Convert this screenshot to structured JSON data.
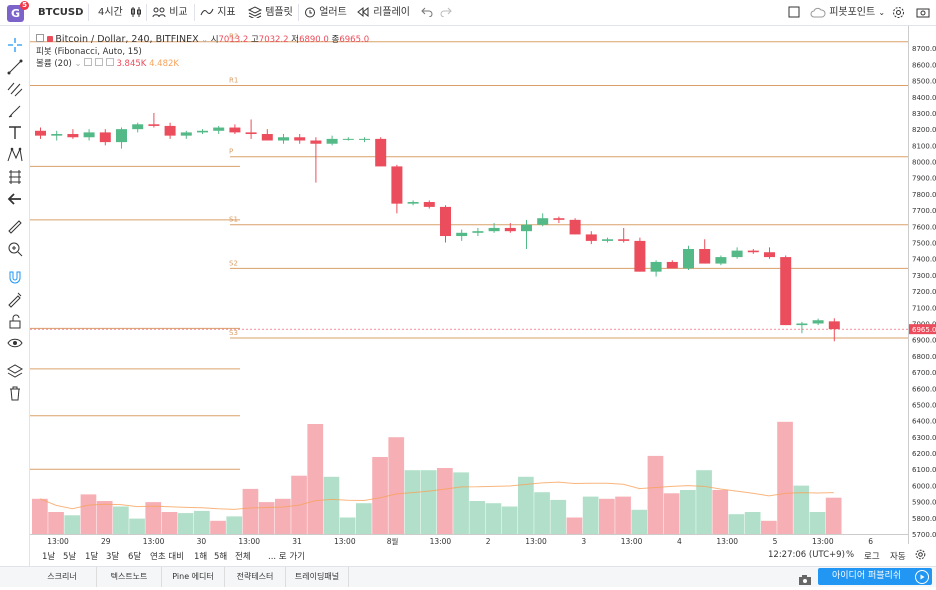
{
  "header": {
    "logo_letter": "G",
    "logo_badge": "5",
    "symbol": "BTCUSD",
    "interval": "4시간",
    "compare_label": "비교",
    "indicators_label": "지표",
    "templates_label": "템플릿",
    "alert_label": "얼러트",
    "replay_label": "리플레이",
    "pivot_label": "피봇포인트"
  },
  "toolbar_icons": [
    "crosshair-icon",
    "trendline-icon",
    "pitchfork-icon",
    "brush-icon",
    "text-icon",
    "pattern-icon",
    "forecast-icon",
    "back-arrow-icon",
    "ruler-icon",
    "zoom-icon",
    "magnet-icon",
    "lock-drawing-icon",
    "unlock-icon",
    "eye-icon",
    "layers-icon",
    "trash-icon"
  ],
  "legend": {
    "title": "Bitcoin / Dollar, 240, BITFINEX",
    "o_label": "시",
    "o": "7013.2",
    "h_label": "고",
    "h": "7032.2",
    "l_label": "저",
    "l": "6890.0",
    "c_label": "종",
    "c": "6965.0",
    "pivot": "피봇 (Fibonacci, Auto, 15)",
    "volume": "볼륨 (20)",
    "vol1": "3.845K",
    "vol2": "4.482K"
  },
  "chart_data": {
    "type": "candlestick",
    "ylim": [
      5700,
      8800
    ],
    "y_ticks": [
      5700,
      5800,
      5900,
      6000,
      6100,
      6200,
      6300,
      6400,
      6500,
      6600,
      6700,
      6800,
      6900,
      7000,
      7100,
      7200,
      7300,
      7400,
      7500,
      7600,
      7700,
      7800,
      7900,
      8000,
      8100,
      8200,
      8300,
      8400,
      8500,
      8600,
      8700
    ],
    "last_price": "6965.0",
    "candles": [
      [
        8190,
        8210,
        8140,
        8160
      ],
      [
        8160,
        8190,
        8130,
        8170
      ],
      [
        8170,
        8200,
        8140,
        8150
      ],
      [
        8150,
        8200,
        8130,
        8180
      ],
      [
        8180,
        8200,
        8100,
        8120
      ],
      [
        8120,
        8210,
        8080,
        8200
      ],
      [
        8200,
        8240,
        8180,
        8230
      ],
      [
        8230,
        8300,
        8210,
        8220
      ],
      [
        8220,
        8240,
        8140,
        8160
      ],
      [
        8160,
        8190,
        8140,
        8180
      ],
      [
        8180,
        8200,
        8170,
        8190
      ],
      [
        8190,
        8220,
        8170,
        8210
      ],
      [
        8210,
        8230,
        8170,
        8180
      ],
      [
        8180,
        8260,
        8140,
        8170
      ],
      [
        8170,
        8200,
        8150,
        8130
      ],
      [
        8130,
        8170,
        8110,
        8150
      ],
      [
        8150,
        8170,
        8110,
        8130
      ],
      [
        8130,
        8150,
        7870,
        8110
      ],
      [
        8110,
        8160,
        8100,
        8140
      ],
      [
        8140,
        8150,
        8130,
        8140
      ],
      [
        8140,
        8150,
        8120,
        8140
      ],
      [
        8140,
        8150,
        7970,
        7970
      ],
      [
        7970,
        7980,
        7680,
        7740
      ],
      [
        7740,
        7760,
        7730,
        7750
      ],
      [
        7750,
        7760,
        7710,
        7720
      ],
      [
        7720,
        7730,
        7500,
        7540
      ],
      [
        7540,
        7580,
        7510,
        7560
      ],
      [
        7560,
        7590,
        7540,
        7570
      ],
      [
        7570,
        7620,
        7560,
        7590
      ],
      [
        7590,
        7620,
        7560,
        7570
      ],
      [
        7570,
        7640,
        7460,
        7610
      ],
      [
        7610,
        7680,
        7600,
        7650
      ],
      [
        7650,
        7660,
        7620,
        7640
      ],
      [
        7640,
        7650,
        7550,
        7550
      ],
      [
        7550,
        7570,
        7490,
        7510
      ],
      [
        7510,
        7530,
        7500,
        7520
      ],
      [
        7520,
        7590,
        7500,
        7510
      ],
      [
        7510,
        7530,
        7320,
        7320
      ],
      [
        7320,
        7390,
        7290,
        7380
      ],
      [
        7380,
        7390,
        7340,
        7340
      ],
      [
        7340,
        7480,
        7330,
        7460
      ],
      [
        7460,
        7520,
        7370,
        7370
      ],
      [
        7370,
        7420,
        7360,
        7410
      ],
      [
        7410,
        7470,
        7400,
        7450
      ],
      [
        7450,
        7460,
        7430,
        7440
      ],
      [
        7440,
        7470,
        7400,
        7410
      ],
      [
        7410,
        7420,
        6990,
        6990
      ],
      [
        6990,
        7010,
        6940,
        7000
      ],
      [
        7000,
        7030,
        6990,
        7020
      ],
      [
        7013.2,
        7032.2,
        6890,
        6965
      ]
    ],
    "volumes": [
      [
        0.32,
        0
      ],
      [
        0.2,
        0
      ],
      [
        0.17,
        1
      ],
      [
        0.36,
        0
      ],
      [
        0.3,
        0
      ],
      [
        0.25,
        1
      ],
      [
        0.14,
        1
      ],
      [
        0.29,
        0
      ],
      [
        0.2,
        0
      ],
      [
        0.19,
        1
      ],
      [
        0.21,
        1
      ],
      [
        0.12,
        0
      ],
      [
        0.16,
        1
      ],
      [
        0.41,
        0
      ],
      [
        0.29,
        0
      ],
      [
        0.32,
        0
      ],
      [
        0.53,
        0
      ],
      [
        1.0,
        0
      ],
      [
        0.52,
        1
      ],
      [
        0.15,
        1
      ],
      [
        0.28,
        1
      ],
      [
        0.7,
        0
      ],
      [
        0.88,
        0
      ],
      [
        0.58,
        1
      ],
      [
        0.58,
        1
      ],
      [
        0.6,
        0
      ],
      [
        0.56,
        1
      ],
      [
        0.3,
        1
      ],
      [
        0.28,
        1
      ],
      [
        0.25,
        1
      ],
      [
        0.52,
        1
      ],
      [
        0.38,
        1
      ],
      [
        0.31,
        1
      ],
      [
        0.15,
        0
      ],
      [
        0.34,
        1
      ],
      [
        0.32,
        0
      ],
      [
        0.34,
        0
      ],
      [
        0.22,
        1
      ],
      [
        0.71,
        0
      ],
      [
        0.37,
        0
      ],
      [
        0.4,
        1
      ],
      [
        0.58,
        1
      ],
      [
        0.4,
        0
      ],
      [
        0.18,
        1
      ],
      [
        0.2,
        1
      ],
      [
        0.12,
        0
      ],
      [
        1.02,
        0
      ],
      [
        0.44,
        1
      ],
      [
        0.2,
        1
      ],
      [
        0.33,
        0
      ]
    ],
    "pivot_levels": [
      {
        "label": "R2",
        "value": 8740
      },
      {
        "label": "R1",
        "value": 8470
      },
      {
        "label": "P",
        "value": 8030
      },
      {
        "label": "S1",
        "value": 7610
      },
      {
        "label": "S2",
        "value": 7340
      },
      {
        "label": "S3",
        "value": 6910
      }
    ],
    "pivot_lines_left": [
      8740,
      8470,
      7970,
      7640,
      6970
    ]
  },
  "time_axis": [
    "13:00",
    "29",
    "13:00",
    "30",
    "13:00",
    "31",
    "13:00",
    "8월",
    "13:00",
    "2",
    "13:00",
    "3",
    "13:00",
    "4",
    "13:00",
    "5",
    "13:00",
    "6"
  ],
  "bottom_bar": {
    "ranges": [
      "1날",
      "5날",
      "1달",
      "3달",
      "6달",
      "연초 대비",
      "1해",
      "5해",
      "전체"
    ],
    "goto": "... 로 가기",
    "clock": "12:27:06 (UTC+9)",
    "percent": "%",
    "log": "로그",
    "auto": "자동"
  },
  "bottom_tabs": [
    "스크리너",
    "텍스트노트",
    "Pine 에디터",
    "전략테스터",
    "트레이딩패널"
  ],
  "publish_label": "아이디어 퍼블리쉬",
  "colors": {
    "up": "#53b987",
    "down": "#eb4d5c",
    "pivot": "#d9a06a",
    "accent": "#2196f3"
  }
}
